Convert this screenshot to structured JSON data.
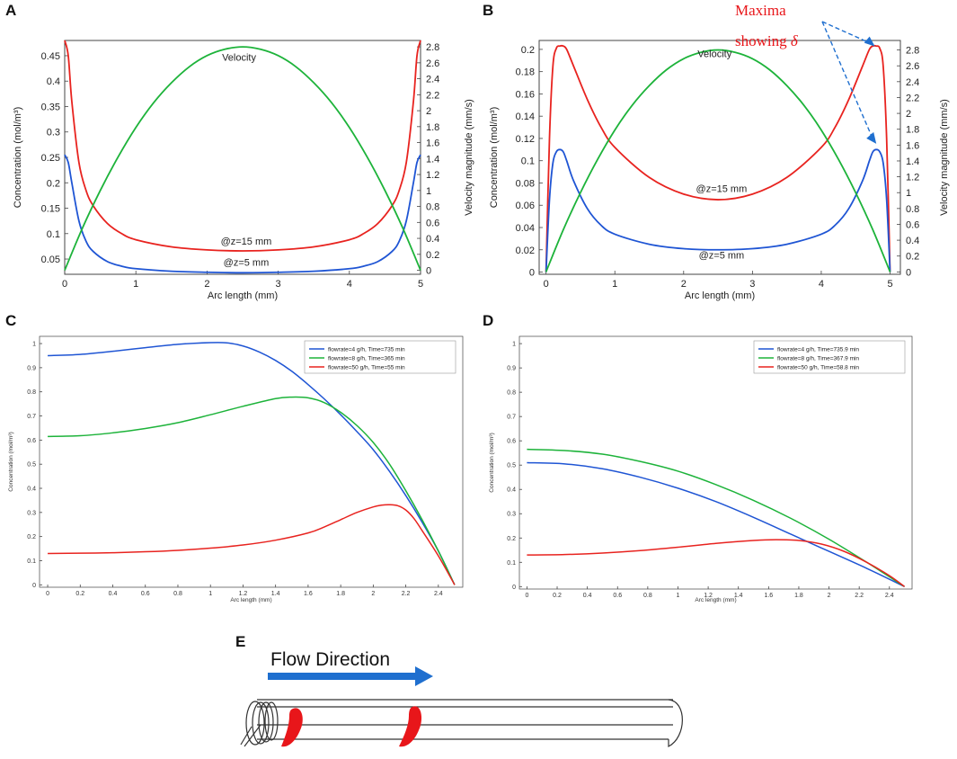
{
  "figure": {
    "flow_label": "Flow Direction"
  },
  "chart_data": [
    {
      "panel": "A",
      "type": "line",
      "xlabel": "Arc length (mm)",
      "ylabel": "Concentration (mol/m³)",
      "y2label": "Velocity magnitude (mm/s)",
      "xlim": [
        0,
        5
      ],
      "ylim": [
        0.02,
        0.48
      ],
      "y2lim": [
        -0.05,
        2.88
      ],
      "xticks": [
        0,
        1,
        2,
        3,
        4,
        5
      ],
      "yticks": [
        0.05,
        0.1,
        0.15,
        0.2,
        0.25,
        0.3,
        0.35,
        0.4,
        0.45
      ],
      "y2ticks": [
        0,
        0.2,
        0.4,
        0.6,
        0.8,
        1,
        1.2,
        1.4,
        1.6,
        1.8,
        2,
        2.2,
        2.4,
        2.6,
        2.8
      ],
      "annotations": [
        {
          "text": "Velocity",
          "x": 2.45,
          "y": 0.44
        },
        {
          "text": "@z=15 mm",
          "x": 2.55,
          "y": 0.078
        },
        {
          "text": "@z=5 mm",
          "x": 2.55,
          "y": 0.037
        }
      ],
      "series": [
        {
          "name": "@z=15 mm",
          "color": "#e8231f",
          "axis": "left",
          "x": [
            0,
            0.05,
            0.1,
            0.2,
            0.3,
            0.4,
            0.6,
            0.8,
            1.0,
            1.5,
            2.0,
            2.5,
            3.0,
            3.5,
            4.0,
            4.2,
            4.4,
            4.6,
            4.7,
            4.8,
            4.9,
            4.95,
            5.0
          ],
          "y": [
            0.48,
            0.45,
            0.36,
            0.24,
            0.185,
            0.155,
            0.12,
            0.1,
            0.088,
            0.074,
            0.068,
            0.066,
            0.068,
            0.074,
            0.088,
            0.1,
            0.12,
            0.155,
            0.185,
            0.24,
            0.36,
            0.45,
            0.48
          ]
        },
        {
          "name": "@z=5 mm",
          "color": "#1f55d4",
          "axis": "left",
          "x": [
            0,
            0.05,
            0.1,
            0.2,
            0.3,
            0.4,
            0.6,
            0.8,
            1.0,
            1.5,
            2.0,
            2.5,
            3.0,
            3.5,
            4.0,
            4.2,
            4.4,
            4.6,
            4.7,
            4.8,
            4.9,
            4.95,
            5.0
          ],
          "y": [
            0.255,
            0.24,
            0.2,
            0.125,
            0.085,
            0.065,
            0.045,
            0.036,
            0.031,
            0.026,
            0.024,
            0.023,
            0.024,
            0.026,
            0.031,
            0.036,
            0.045,
            0.065,
            0.085,
            0.125,
            0.2,
            0.24,
            0.255
          ]
        },
        {
          "name": "Velocity",
          "color": "#1db33a",
          "axis": "right",
          "x": [
            0,
            0.25,
            0.5,
            0.75,
            1.0,
            1.25,
            1.5,
            1.75,
            2.0,
            2.25,
            2.5,
            2.75,
            3.0,
            3.25,
            3.5,
            3.75,
            4.0,
            4.25,
            4.5,
            4.75,
            5.0
          ],
          "y": [
            0.0,
            0.53,
            1.0,
            1.42,
            1.79,
            2.1,
            2.35,
            2.55,
            2.69,
            2.77,
            2.8,
            2.77,
            2.69,
            2.55,
            2.35,
            2.1,
            1.79,
            1.42,
            1.0,
            0.53,
            0.0
          ]
        }
      ]
    },
    {
      "panel": "B",
      "type": "line",
      "xlabel": "Arc length (mm)",
      "ylabel": "Concentration (mol/m³)",
      "y2label": "Velocity magnitude (mm/s)",
      "xlim": [
        -0.1,
        5.15
      ],
      "ylim": [
        -0.002,
        0.208
      ],
      "y2lim": [
        -0.03,
        2.92
      ],
      "xticks": [
        0,
        1,
        2,
        3,
        4,
        5
      ],
      "yticks": [
        0,
        0.02,
        0.04,
        0.06,
        0.08,
        0.1,
        0.12,
        0.14,
        0.16,
        0.18,
        0.2
      ],
      "y2ticks": [
        0,
        0.2,
        0.4,
        0.6,
        0.8,
        1,
        1.2,
        1.4,
        1.6,
        1.8,
        2,
        2.2,
        2.4,
        2.6,
        2.8
      ],
      "title_annotation": {
        "line1": "Maxima",
        "line2": "showing",
        "symbol": "δ"
      },
      "annotations": [
        {
          "text": "Velocity",
          "x": 2.45,
          "y": 0.193
        },
        {
          "text": "@z=15 mm",
          "x": 2.55,
          "y": 0.072
        },
        {
          "text": "@z=5 mm",
          "x": 2.55,
          "y": 0.012
        }
      ],
      "series": [
        {
          "name": "@z=15 mm",
          "color": "#e8231f",
          "axis": "left",
          "x": [
            0,
            0.05,
            0.1,
            0.15,
            0.2,
            0.25,
            0.3,
            0.4,
            0.6,
            0.8,
            1.0,
            1.5,
            2.0,
            2.5,
            3.0,
            3.5,
            4.0,
            4.2,
            4.4,
            4.6,
            4.7,
            4.75,
            4.8,
            4.85,
            4.9,
            4.95,
            5.0
          ],
          "y": [
            0.0,
            0.12,
            0.185,
            0.201,
            0.203,
            0.203,
            0.2,
            0.185,
            0.155,
            0.13,
            0.112,
            0.085,
            0.07,
            0.065,
            0.07,
            0.085,
            0.112,
            0.13,
            0.155,
            0.185,
            0.2,
            0.203,
            0.203,
            0.201,
            0.185,
            0.12,
            0.0
          ]
        },
        {
          "name": "@z=5 mm",
          "color": "#1f55d4",
          "axis": "left",
          "x": [
            0,
            0.05,
            0.1,
            0.15,
            0.2,
            0.25,
            0.3,
            0.4,
            0.6,
            0.8,
            1.0,
            1.5,
            2.0,
            2.5,
            3.0,
            3.5,
            4.0,
            4.2,
            4.4,
            4.6,
            4.7,
            4.75,
            4.8,
            4.85,
            4.9,
            4.95,
            5.0
          ],
          "y": [
            0.0,
            0.065,
            0.098,
            0.108,
            0.11,
            0.108,
            0.1,
            0.082,
            0.057,
            0.042,
            0.034,
            0.025,
            0.021,
            0.02,
            0.021,
            0.025,
            0.034,
            0.042,
            0.057,
            0.082,
            0.1,
            0.108,
            0.11,
            0.108,
            0.098,
            0.065,
            0.0
          ]
        },
        {
          "name": "Velocity",
          "color": "#1db33a",
          "axis": "right",
          "x": [
            0,
            0.25,
            0.5,
            0.75,
            1.0,
            1.25,
            1.5,
            1.75,
            2.0,
            2.25,
            2.5,
            2.75,
            3.0,
            3.25,
            3.5,
            3.75,
            4.0,
            4.25,
            4.5,
            4.75,
            5.0
          ],
          "y": [
            0.0,
            0.53,
            1.0,
            1.42,
            1.79,
            2.1,
            2.35,
            2.55,
            2.69,
            2.77,
            2.8,
            2.77,
            2.69,
            2.55,
            2.35,
            2.1,
            1.79,
            1.42,
            1.0,
            0.53,
            0.0
          ]
        }
      ]
    },
    {
      "panel": "C",
      "type": "line",
      "xlabel": "Arc length (mm)",
      "ylabel": "Concentration (mol/m³)",
      "xlim": [
        -0.05,
        2.55
      ],
      "ylim": [
        -0.01,
        1.03
      ],
      "xticks": [
        0,
        0.2,
        0.4,
        0.6,
        0.8,
        1,
        1.2,
        1.4,
        1.6,
        1.8,
        2,
        2.2,
        2.4
      ],
      "yticks": [
        0,
        0.1,
        0.2,
        0.3,
        0.4,
        0.5,
        0.6,
        0.7,
        0.8,
        0.9,
        1
      ],
      "legend": "top-right",
      "series": [
        {
          "name": "flowrate=4 g/h, Time=735 min",
          "color": "#1f55d4",
          "x": [
            0,
            0.2,
            0.4,
            0.6,
            0.8,
            1.0,
            1.1,
            1.2,
            1.3,
            1.4,
            1.5,
            1.6,
            1.7,
            1.8,
            1.9,
            2.0,
            2.1,
            2.2,
            2.3,
            2.4,
            2.5
          ],
          "y": [
            0.95,
            0.955,
            0.968,
            0.983,
            0.997,
            1.004,
            1.003,
            0.99,
            0.965,
            0.93,
            0.885,
            0.83,
            0.77,
            0.705,
            0.635,
            0.56,
            0.47,
            0.37,
            0.26,
            0.14,
            0.0
          ]
        },
        {
          "name": "flowrate=8 g/h, Time=365 min",
          "color": "#1db33a",
          "x": [
            0,
            0.2,
            0.4,
            0.6,
            0.8,
            1.0,
            1.2,
            1.4,
            1.5,
            1.6,
            1.7,
            1.8,
            1.9,
            2.0,
            2.1,
            2.2,
            2.3,
            2.4,
            2.5
          ],
          "y": [
            0.615,
            0.618,
            0.63,
            0.648,
            0.672,
            0.705,
            0.74,
            0.772,
            0.778,
            0.775,
            0.755,
            0.715,
            0.66,
            0.59,
            0.5,
            0.39,
            0.27,
            0.14,
            0.0
          ]
        },
        {
          "name": "flowrate=50 g/h, Time=55 min",
          "color": "#e8231f",
          "x": [
            0,
            0.2,
            0.4,
            0.6,
            0.8,
            1.0,
            1.2,
            1.4,
            1.6,
            1.7,
            1.8,
            1.9,
            2.0,
            2.05,
            2.1,
            2.15,
            2.2,
            2.25,
            2.3,
            2.4,
            2.5
          ],
          "y": [
            0.13,
            0.131,
            0.133,
            0.137,
            0.143,
            0.152,
            0.165,
            0.185,
            0.215,
            0.24,
            0.27,
            0.3,
            0.323,
            0.33,
            0.332,
            0.328,
            0.31,
            0.275,
            0.225,
            0.12,
            0.0
          ]
        }
      ]
    },
    {
      "panel": "D",
      "type": "line",
      "xlabel": "Arc length (mm)",
      "ylabel": "Concentration (mol/m³)",
      "xlim": [
        -0.05,
        2.55
      ],
      "ylim": [
        -0.01,
        1.03
      ],
      "xticks": [
        0,
        0.2,
        0.4,
        0.6,
        0.8,
        1,
        1.2,
        1.4,
        1.6,
        1.8,
        2,
        2.2,
        2.4
      ],
      "yticks": [
        0,
        0.1,
        0.2,
        0.3,
        0.4,
        0.5,
        0.6,
        0.7,
        0.8,
        0.9,
        1
      ],
      "legend": "top-right",
      "series": [
        {
          "name": "flowrate=4 g/h, Time=735.9 min",
          "color": "#1f55d4",
          "x": [
            0,
            0.25,
            0.5,
            0.75,
            1.0,
            1.25,
            1.5,
            1.75,
            2.0,
            2.25,
            2.5
          ],
          "y": [
            0.51,
            0.505,
            0.485,
            0.45,
            0.405,
            0.35,
            0.285,
            0.215,
            0.145,
            0.075,
            0.0
          ]
        },
        {
          "name": "flowrate=8 g/h, Time=367.9 min",
          "color": "#1db33a",
          "x": [
            0,
            0.25,
            0.5,
            0.75,
            1.0,
            1.25,
            1.5,
            1.75,
            2.0,
            2.25,
            2.5
          ],
          "y": [
            0.565,
            0.56,
            0.545,
            0.515,
            0.475,
            0.42,
            0.355,
            0.28,
            0.195,
            0.1,
            0.0
          ]
        },
        {
          "name": "flowrate=50 g/h, Time=58.8 min",
          "color": "#e8231f",
          "x": [
            0,
            0.25,
            0.5,
            0.75,
            1.0,
            1.25,
            1.5,
            1.65,
            1.8,
            1.95,
            2.1,
            2.25,
            2.4,
            2.5
          ],
          "y": [
            0.13,
            0.132,
            0.138,
            0.148,
            0.162,
            0.178,
            0.19,
            0.193,
            0.19,
            0.175,
            0.145,
            0.1,
            0.045,
            0.0
          ]
        }
      ]
    }
  ]
}
